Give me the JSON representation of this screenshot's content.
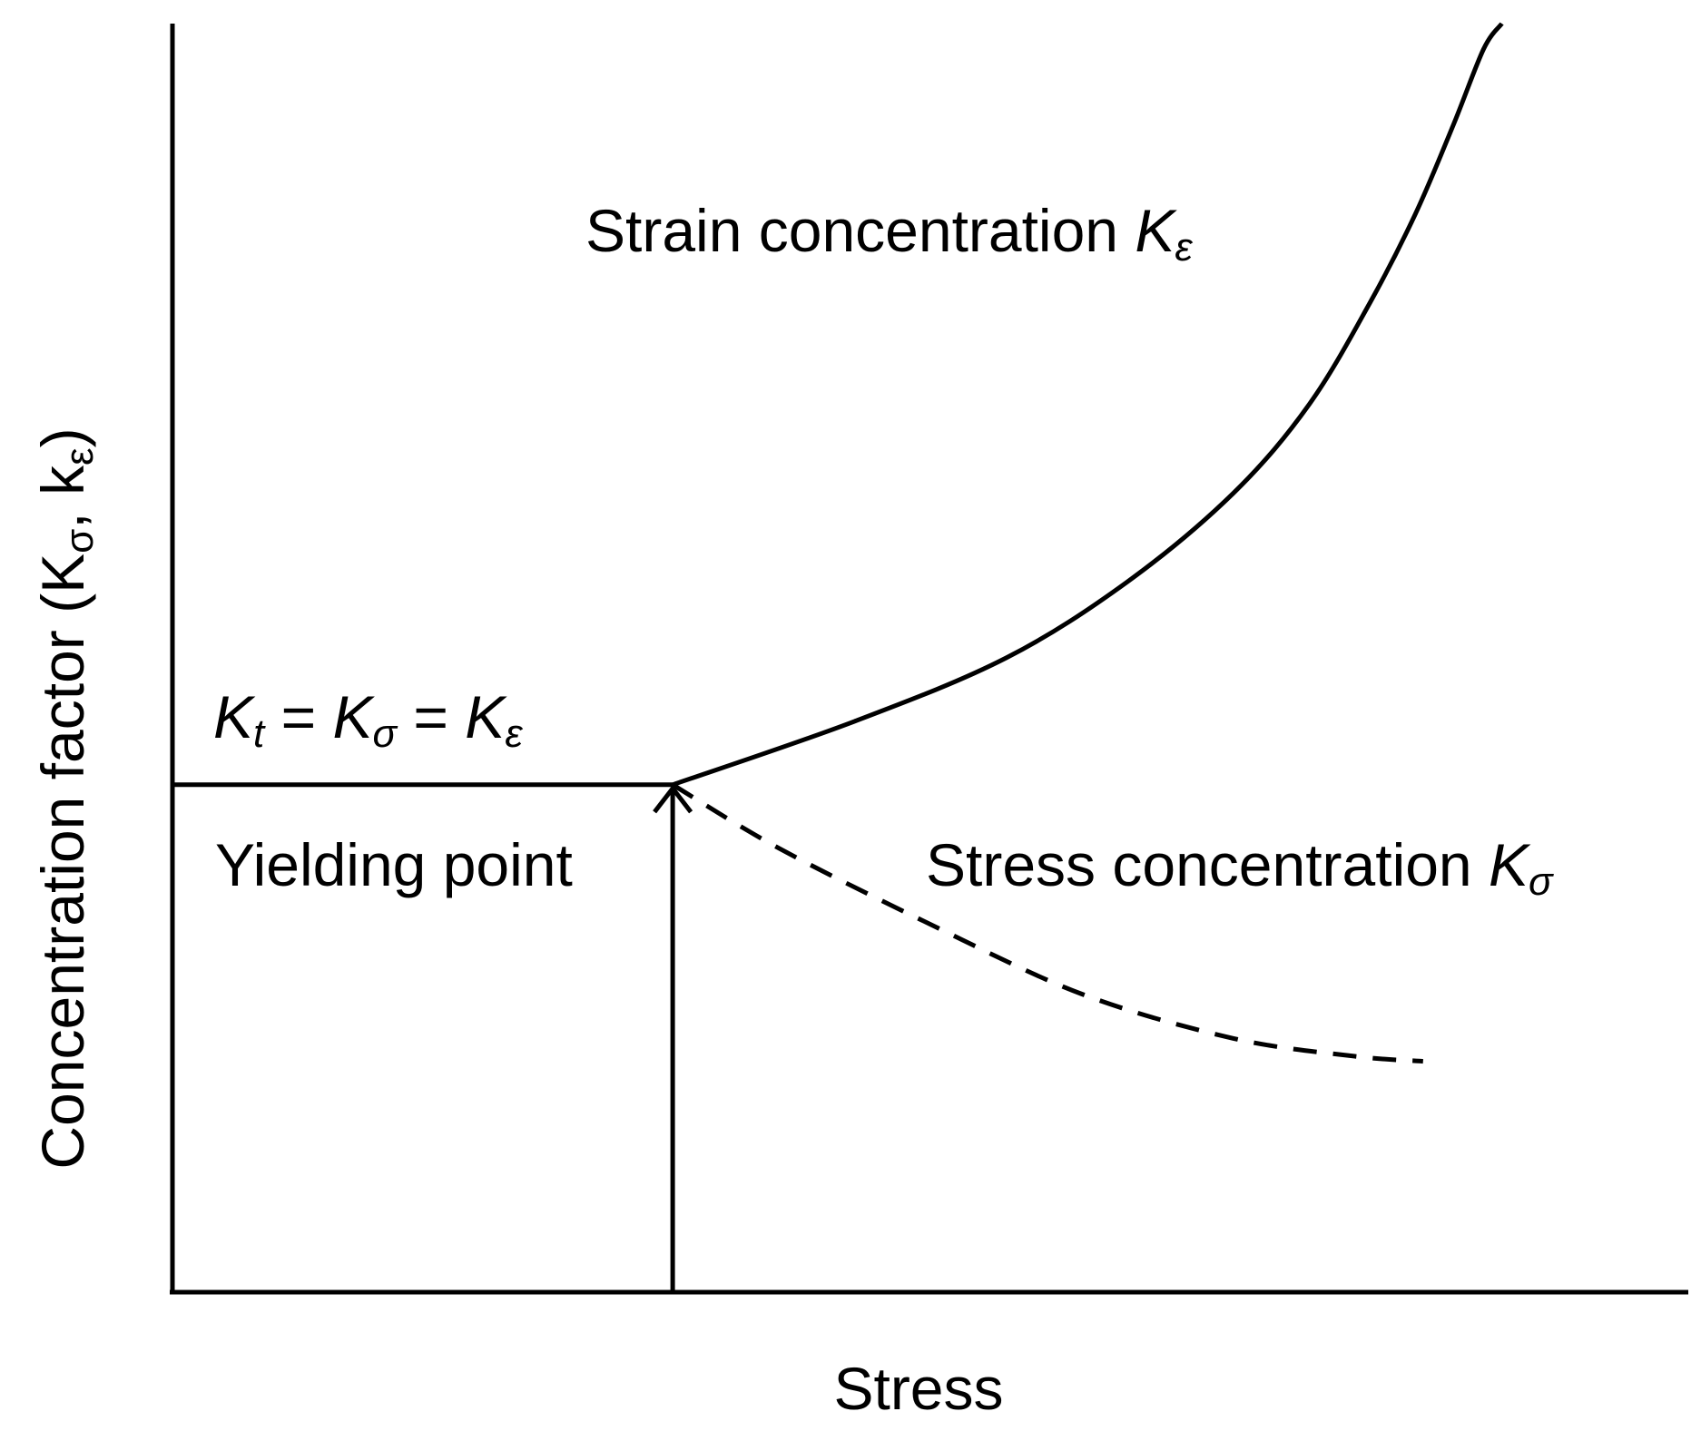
{
  "chart_data": {
    "type": "line",
    "title": "",
    "xlabel": "Stress",
    "ylabel": {
      "prefix": "Concentration factor (K",
      "sub1": "σ",
      "mid": ", k",
      "sub2": "ε",
      "suffix": ")"
    },
    "xlim": [
      0,
      100
    ],
    "ylim": [
      0,
      100
    ],
    "grid": false,
    "legend": "none",
    "series": [
      {
        "style": "solid",
        "x": [
          0,
          33
        ],
        "y": [
          40,
          40
        ]
      },
      {
        "style": "solid",
        "x": [
          33,
          45,
          55,
          63,
          70,
          75,
          79,
          82,
          84.5,
          86.5,
          87.7
        ],
        "y": [
          40,
          45,
          50,
          56,
          63,
          70,
          78,
          85,
          92,
          98,
          100
        ]
      },
      {
        "style": "dashed",
        "x": [
          33,
          40,
          50,
          60,
          70,
          78,
          82.5
        ],
        "y": [
          40,
          35,
          29,
          23.5,
          20,
          18.6,
          18.2
        ]
      }
    ],
    "annotations": {
      "strain": {
        "text": "Strain concentration ",
        "sym": "K",
        "sub": "ε"
      },
      "equal": {
        "sym1": "K",
        "sub1": "t",
        "eq1": " = ",
        "sym2": "K",
        "sub2": "σ",
        "eq2": " = ",
        "sym3": "K",
        "sub3": "ε"
      },
      "yield": {
        "text": "Yielding point"
      },
      "stress": {
        "text": "Stress concentration ",
        "sym": "K",
        "sub": "σ"
      }
    }
  }
}
